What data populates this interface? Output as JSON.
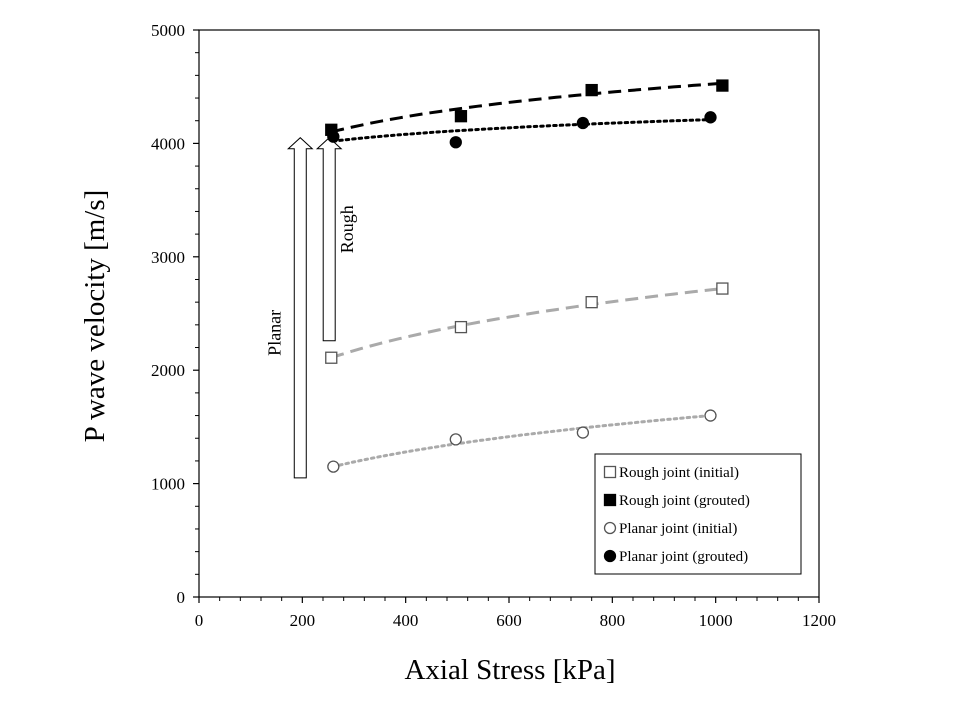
{
  "chart_data": {
    "type": "scatter",
    "title": "",
    "xlabel": "Axial Stress [kPa]",
    "ylabel": "P wave velocity [m/s]",
    "xlim": [
      0,
      1200
    ],
    "ylim": [
      0,
      5000
    ],
    "xticks": [
      0,
      200,
      400,
      600,
      800,
      1000,
      1200
    ],
    "yticks": [
      0,
      1000,
      2000,
      3000,
      4000,
      5000
    ],
    "grid": false,
    "legend_position": "bottom-right",
    "series": [
      {
        "name": "Rough joint (initial)",
        "marker": "square-open",
        "color": "#555555",
        "line_color": "#aaaaaa",
        "line_style": "dashed",
        "x": [
          256,
          507,
          760,
          1013
        ],
        "y": [
          2110,
          2380,
          2600,
          2720
        ]
      },
      {
        "name": "Rough joint (grouted)",
        "marker": "square-filled",
        "color": "#000000",
        "line_color": "#000000",
        "line_style": "dashed",
        "x": [
          256,
          507,
          760,
          1013
        ],
        "y": [
          4120,
          4240,
          4470,
          4510
        ]
      },
      {
        "name": "Planar joint (initial)",
        "marker": "circle-open",
        "color": "#555555",
        "line_color": "#aaaaaa",
        "line_style": "dotted",
        "x": [
          260,
          497,
          743,
          990
        ],
        "y": [
          1150,
          1390,
          1450,
          1600
        ]
      },
      {
        "name": "Planar joint (grouted)",
        "marker": "circle-filled",
        "color": "#000000",
        "line_color": "#000000",
        "line_style": "dotted",
        "x": [
          260,
          497,
          743,
          990
        ],
        "y": [
          4060,
          4010,
          4180,
          4230
        ]
      }
    ],
    "fits": [
      {
        "series": 0,
        "x": [
          256,
          1013
        ],
        "y": [
          2110,
          2720
        ]
      },
      {
        "series": 1,
        "x": [
          256,
          1013
        ],
        "y": [
          4100,
          4530
        ]
      },
      {
        "series": 2,
        "x": [
          260,
          990
        ],
        "y": [
          1150,
          1600
        ]
      },
      {
        "series": 3,
        "x": [
          260,
          990
        ],
        "y": [
          4020,
          4210
        ]
      }
    ],
    "annotations": [
      {
        "text": "Planar",
        "arrow_x": 196,
        "y_from": 1050,
        "y_to": 4050
      },
      {
        "text": "Rough",
        "arrow_x": 252,
        "y_from": 2260,
        "y_to": 4050
      }
    ]
  }
}
